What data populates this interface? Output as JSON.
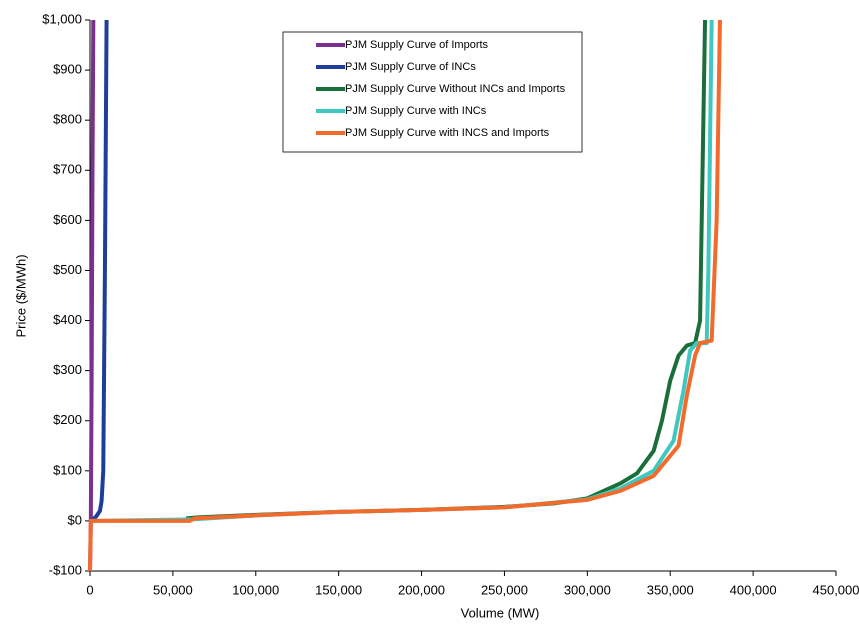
{
  "chart_data": {
    "type": "line",
    "x_label": "Volume (MW)",
    "y_label": "Price ($/MWh)",
    "xlim": [
      0,
      450000
    ],
    "ylim": [
      -100,
      1000
    ],
    "xticks": [
      0,
      {
        "value": 50000,
        "label": "50,000"
      },
      {
        "value": 100000,
        "label": "100,000"
      },
      {
        "value": 150000,
        "label": "150,000"
      },
      {
        "value": 200000,
        "label": "200,000"
      },
      {
        "value": 250000,
        "label": "250,000"
      },
      {
        "value": 300000,
        "label": "300,000"
      },
      {
        "value": 350000,
        "label": "350,000"
      },
      {
        "value": 400000,
        "label": "400,000"
      },
      {
        "value": 450000,
        "label": "450,000"
      }
    ],
    "yticks": [
      {
        "value": -100,
        "label": "-$100"
      },
      {
        "value": 0,
        "label": "$0"
      },
      {
        "value": 100,
        "label": "$100"
      },
      {
        "value": 200,
        "label": "$200"
      },
      {
        "value": 300,
        "label": "$300"
      },
      {
        "value": 400,
        "label": "$400"
      },
      {
        "value": 500,
        "label": "$500"
      },
      {
        "value": 600,
        "label": "$600"
      },
      {
        "value": 700,
        "label": "$700"
      },
      {
        "value": 800,
        "label": "$800"
      },
      {
        "value": 900,
        "label": "$900"
      },
      {
        "value": 1000,
        "label": "$1,000"
      }
    ],
    "grid": false,
    "legend_position": "top",
    "series": [
      {
        "name": "PJM Supply Curve of Imports",
        "color": "#7b2f8e",
        "x": [
          0,
          500,
          1000,
          1500,
          2000
        ],
        "values": [
          -100,
          0,
          300,
          700,
          1000
        ]
      },
      {
        "name": "PJM Supply Curve of INCs",
        "color": "#1f3e99",
        "x": [
          0,
          2000,
          4000,
          6000,
          7000,
          8000,
          9000,
          10000
        ],
        "values": [
          0,
          3,
          10,
          20,
          40,
          100,
          500,
          1000
        ]
      },
      {
        "name": "PJM Supply Curve Without INCs and Imports",
        "color": "#1a6e3a",
        "x": [
          58000,
          65000,
          100000,
          150000,
          200000,
          250000,
          280000,
          300000,
          310000,
          320000,
          330000,
          340000,
          345000,
          350000,
          355000,
          360000,
          365000,
          368000,
          369000,
          370000,
          371000
        ],
        "values": [
          5,
          7,
          12,
          18,
          22,
          28,
          35,
          45,
          60,
          75,
          95,
          140,
          200,
          280,
          330,
          350,
          355,
          400,
          600,
          800,
          1000
        ]
      },
      {
        "name": "PJM Supply Curve with INCs",
        "color": "#3ec8c0",
        "x": [
          0,
          62000,
          100000,
          150000,
          200000,
          250000,
          300000,
          320000,
          340000,
          352000,
          358000,
          362000,
          366000,
          372000,
          373000,
          375000
        ],
        "values": [
          0,
          3,
          11,
          18,
          22,
          27,
          43,
          65,
          100,
          160,
          260,
          340,
          355,
          355,
          500,
          1000
        ]
      },
      {
        "name": "PJM Supply Curve with INCS and Imports",
        "color": "#f26b2d",
        "x": [
          0,
          500,
          60000,
          63000,
          100000,
          150000,
          200000,
          250000,
          300000,
          320000,
          340000,
          355000,
          360000,
          365000,
          368000,
          375000,
          378000,
          380000
        ],
        "values": [
          -100,
          0,
          0,
          5,
          11,
          18,
          22,
          27,
          42,
          60,
          90,
          150,
          250,
          330,
          355,
          360,
          600,
          1000
        ]
      }
    ]
  }
}
